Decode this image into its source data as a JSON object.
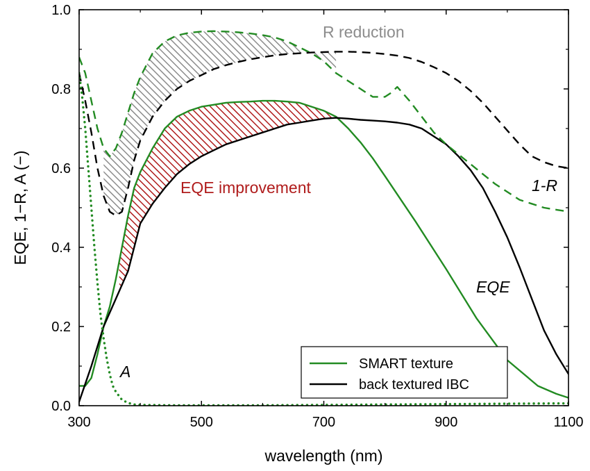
{
  "chart_data": {
    "type": "line",
    "xlabel": "wavelength (nm)",
    "ylabel": "EQE, 1−R, A (−)",
    "xlim": [
      300,
      1100
    ],
    "ylim": [
      0.0,
      1.0
    ],
    "xticks": [
      300,
      500,
      700,
      900,
      1100
    ],
    "yticks": [
      0.0,
      0.2,
      0.4,
      0.6,
      0.8,
      1.0
    ],
    "xtick_labels": [
      "300",
      "500",
      "700",
      "900",
      "1100"
    ],
    "ytick_labels": [
      "0.0",
      "0.2",
      "0.4",
      "0.6",
      "0.8",
      "1.0"
    ],
    "grid": false,
    "legend_position": "bottom-right",
    "legend": [
      {
        "label": "SMART texture",
        "color": "#228b22"
      },
      {
        "label": "back textured IBC",
        "color": "#000000"
      }
    ],
    "annotations": {
      "r_reduction": "R reduction",
      "eqe_improvement": "EQE improvement",
      "one_minus_r": "1-R",
      "eqe": "EQE",
      "a": "A"
    },
    "colors": {
      "smart": "#228b22",
      "ibc": "#000000",
      "r_hatch": "#8c8c8c",
      "eqe_hatch": "#b01c1c",
      "r_text": "#8c8c8c",
      "eqe_text": "#b01c1c"
    },
    "series": [
      {
        "name": "SMART texture",
        "quantity": "EQE",
        "style": "solid",
        "color": "#228b22",
        "x": [
          300,
          310,
          320,
          330,
          340,
          350,
          360,
          370,
          380,
          390,
          400,
          420,
          440,
          460,
          480,
          500,
          520,
          540,
          560,
          580,
          600,
          620,
          640,
          660,
          680,
          700,
          720,
          740,
          760,
          780,
          800,
          850,
          900,
          950,
          1000,
          1050,
          1080,
          1100
        ],
        "y": [
          0.05,
          0.05,
          0.07,
          0.13,
          0.2,
          0.25,
          0.32,
          0.4,
          0.48,
          0.55,
          0.59,
          0.65,
          0.7,
          0.73,
          0.745,
          0.755,
          0.76,
          0.765,
          0.767,
          0.768,
          0.77,
          0.77,
          0.768,
          0.765,
          0.755,
          0.745,
          0.73,
          0.7,
          0.665,
          0.625,
          0.58,
          0.465,
          0.345,
          0.22,
          0.115,
          0.05,
          0.03,
          0.02
        ]
      },
      {
        "name": "back textured IBC",
        "quantity": "EQE",
        "style": "solid",
        "color": "#000000",
        "x": [
          300,
          320,
          340,
          360,
          380,
          400,
          420,
          440,
          460,
          480,
          500,
          520,
          540,
          560,
          580,
          600,
          620,
          640,
          660,
          680,
          700,
          720,
          740,
          760,
          780,
          800,
          820,
          840,
          860,
          880,
          900,
          920,
          940,
          960,
          980,
          1000,
          1020,
          1040,
          1060,
          1080,
          1100
        ],
        "y": [
          0.01,
          0.1,
          0.2,
          0.27,
          0.34,
          0.46,
          0.51,
          0.55,
          0.585,
          0.61,
          0.63,
          0.645,
          0.66,
          0.67,
          0.68,
          0.69,
          0.7,
          0.71,
          0.715,
          0.72,
          0.725,
          0.727,
          0.725,
          0.722,
          0.72,
          0.718,
          0.715,
          0.71,
          0.7,
          0.68,
          0.66,
          0.63,
          0.595,
          0.55,
          0.49,
          0.425,
          0.35,
          0.27,
          0.19,
          0.13,
          0.08
        ]
      },
      {
        "name": "SMART texture",
        "quantity": "1-R",
        "style": "dashed",
        "color": "#228b22",
        "x": [
          300,
          310,
          320,
          330,
          340,
          350,
          360,
          370,
          380,
          390,
          400,
          420,
          440,
          460,
          480,
          500,
          520,
          540,
          560,
          580,
          600,
          620,
          640,
          660,
          680,
          700,
          720,
          740,
          760,
          780,
          800,
          810,
          820,
          840,
          860,
          880,
          900,
          920,
          940,
          960,
          980,
          1000,
          1020,
          1040,
          1060,
          1080,
          1100
        ],
        "y": [
          0.88,
          0.84,
          0.77,
          0.7,
          0.65,
          0.63,
          0.65,
          0.69,
          0.74,
          0.79,
          0.83,
          0.89,
          0.92,
          0.935,
          0.942,
          0.945,
          0.946,
          0.945,
          0.943,
          0.94,
          0.936,
          0.93,
          0.92,
          0.905,
          0.89,
          0.87,
          0.84,
          0.82,
          0.8,
          0.78,
          0.78,
          0.79,
          0.805,
          0.77,
          0.73,
          0.69,
          0.66,
          0.635,
          0.61,
          0.585,
          0.56,
          0.54,
          0.52,
          0.51,
          0.5,
          0.495,
          0.49
        ]
      },
      {
        "name": "back textured IBC",
        "quantity": "1-R",
        "style": "dashed",
        "color": "#000000",
        "x": [
          300,
          310,
          320,
          330,
          340,
          350,
          360,
          370,
          380,
          390,
          400,
          420,
          440,
          460,
          480,
          500,
          520,
          540,
          560,
          580,
          600,
          620,
          640,
          660,
          680,
          700,
          720,
          740,
          760,
          780,
          800,
          820,
          840,
          860,
          880,
          900,
          920,
          940,
          960,
          980,
          1000,
          1020,
          1040,
          1060,
          1080,
          1100
        ],
        "y": [
          0.84,
          0.77,
          0.69,
          0.6,
          0.53,
          0.49,
          0.48,
          0.49,
          0.55,
          0.62,
          0.67,
          0.73,
          0.77,
          0.8,
          0.82,
          0.835,
          0.85,
          0.86,
          0.868,
          0.875,
          0.88,
          0.885,
          0.888,
          0.89,
          0.892,
          0.893,
          0.894,
          0.894,
          0.893,
          0.891,
          0.888,
          0.884,
          0.878,
          0.868,
          0.855,
          0.84,
          0.82,
          0.795,
          0.765,
          0.73,
          0.695,
          0.66,
          0.63,
          0.615,
          0.605,
          0.6
        ]
      },
      {
        "name": "SMART texture",
        "quantity": "A",
        "style": "dotted",
        "color": "#228b22",
        "x": [
          300,
          305,
          310,
          315,
          320,
          325,
          330,
          335,
          340,
          345,
          350,
          355,
          360,
          370,
          380,
          390,
          400,
          450,
          500,
          600,
          700,
          800,
          900,
          1000,
          1100
        ],
        "y": [
          0.84,
          0.78,
          0.7,
          0.6,
          0.5,
          0.4,
          0.31,
          0.23,
          0.17,
          0.12,
          0.08,
          0.05,
          0.035,
          0.015,
          0.007,
          0.003,
          0.002,
          0.001,
          0.001,
          0.001,
          0.002,
          0.003,
          0.004,
          0.005,
          0.006
        ]
      }
    ]
  }
}
